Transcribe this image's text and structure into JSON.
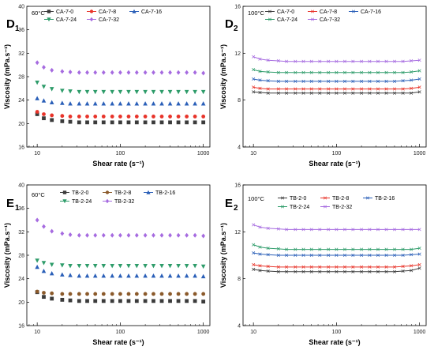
{
  "chart_data": [
    {
      "type": "scatter",
      "panel": "D",
      "panel_sub": "1",
      "temperature": "60°C",
      "xlabel": "Shear rate (s⁻¹)",
      "ylabel": "Viscosity (mPa.s⁻¹)",
      "x_scale": "log",
      "xlim": [
        7.5,
        1200
      ],
      "x_ticks": [
        10,
        100,
        1000
      ],
      "ylim": [
        16,
        40
      ],
      "y_ticks": [
        16,
        20,
        24,
        28,
        32,
        36,
        40
      ],
      "legend_position": "top",
      "grid": false,
      "x": [
        10,
        12,
        15,
        20,
        25,
        32,
        40,
        50,
        63,
        80,
        100,
        126,
        158,
        200,
        251,
        316,
        398,
        501,
        631,
        794,
        1000
      ],
      "series": [
        {
          "name": "CA-7-0",
          "marker": "square",
          "color": "#3b3b3b",
          "values": [
            21.6,
            20.9,
            20.6,
            20.4,
            20.3,
            20.2,
            20.2,
            20.2,
            20.2,
            20.2,
            20.2,
            20.2,
            20.2,
            20.2,
            20.2,
            20.2,
            20.2,
            20.2,
            20.2,
            20.2,
            20.2
          ]
        },
        {
          "name": "CA-7-8",
          "marker": "circle",
          "color": "#e8342a",
          "values": [
            22.0,
            21.6,
            21.4,
            21.3,
            21.2,
            21.2,
            21.2,
            21.2,
            21.2,
            21.2,
            21.2,
            21.2,
            21.2,
            21.2,
            21.2,
            21.2,
            21.2,
            21.2,
            21.2,
            21.2,
            21.2
          ]
        },
        {
          "name": "CA-7-16",
          "marker": "triangle-up",
          "color": "#2a5fb8",
          "values": [
            24.3,
            23.9,
            23.6,
            23.5,
            23.4,
            23.4,
            23.4,
            23.4,
            23.4,
            23.4,
            23.4,
            23.4,
            23.4,
            23.4,
            23.4,
            23.4,
            23.4,
            23.4,
            23.4,
            23.4,
            23.4
          ]
        },
        {
          "name": "CA-7-24",
          "marker": "triangle-down",
          "color": "#2e9c6a",
          "values": [
            27.0,
            26.3,
            25.9,
            25.6,
            25.5,
            25.4,
            25.4,
            25.4,
            25.4,
            25.4,
            25.4,
            25.4,
            25.4,
            25.4,
            25.4,
            25.4,
            25.4,
            25.4,
            25.4,
            25.4,
            25.4
          ]
        },
        {
          "name": "CA-7-32",
          "marker": "diamond",
          "color": "#a66be0",
          "values": [
            30.4,
            29.6,
            29.1,
            28.9,
            28.8,
            28.7,
            28.7,
            28.7,
            28.7,
            28.7,
            28.7,
            28.7,
            28.7,
            28.7,
            28.7,
            28.7,
            28.7,
            28.7,
            28.7,
            28.7,
            28.6
          ]
        }
      ]
    },
    {
      "type": "line",
      "panel": "D",
      "panel_sub": "2",
      "temperature": "100°C",
      "xlabel": "Shear rate (s⁻¹)",
      "ylabel": "Viscosity (mPa.s⁻¹)",
      "x_scale": "log",
      "xlim": [
        7.5,
        1200
      ],
      "x_ticks": [
        10,
        100,
        1000
      ],
      "ylim": [
        4,
        16
      ],
      "y_ticks": [
        4,
        8,
        12,
        16
      ],
      "legend_position": "top",
      "grid": false,
      "x": [
        10,
        12,
        15,
        20,
        25,
        32,
        40,
        50,
        63,
        80,
        100,
        126,
        158,
        200,
        251,
        316,
        398,
        501,
        631,
        794,
        1000
      ],
      "series": [
        {
          "name": "CA-7-0",
          "marker": "x",
          "color": "#3b3b3b",
          "values": [
            8.7,
            8.65,
            8.6,
            8.6,
            8.6,
            8.6,
            8.6,
            8.6,
            8.6,
            8.6,
            8.6,
            8.6,
            8.6,
            8.6,
            8.6,
            8.6,
            8.6,
            8.6,
            8.6,
            8.6,
            8.7
          ]
        },
        {
          "name": "CA-7-8",
          "marker": "x",
          "color": "#e8342a",
          "values": [
            9.1,
            9.0,
            8.95,
            8.95,
            8.95,
            8.95,
            8.95,
            8.95,
            8.95,
            8.95,
            8.95,
            8.95,
            8.95,
            8.95,
            8.95,
            8.95,
            8.95,
            8.95,
            8.95,
            9.0,
            9.1
          ]
        },
        {
          "name": "CA-7-16",
          "marker": "x",
          "color": "#2a5fb8",
          "values": [
            9.8,
            9.7,
            9.65,
            9.6,
            9.6,
            9.6,
            9.6,
            9.6,
            9.6,
            9.6,
            9.6,
            9.6,
            9.6,
            9.6,
            9.6,
            9.6,
            9.6,
            9.6,
            9.65,
            9.7,
            9.8
          ]
        },
        {
          "name": "CA-7-24",
          "marker": "x",
          "color": "#2e9c6a",
          "values": [
            10.6,
            10.45,
            10.4,
            10.35,
            10.35,
            10.35,
            10.35,
            10.35,
            10.35,
            10.35,
            10.35,
            10.35,
            10.35,
            10.35,
            10.35,
            10.35,
            10.35,
            10.35,
            10.35,
            10.4,
            10.5
          ]
        },
        {
          "name": "CA-7-32",
          "marker": "x",
          "color": "#a66be0",
          "values": [
            11.7,
            11.5,
            11.4,
            11.35,
            11.3,
            11.3,
            11.3,
            11.3,
            11.3,
            11.3,
            11.3,
            11.3,
            11.3,
            11.3,
            11.3,
            11.3,
            11.3,
            11.3,
            11.3,
            11.35,
            11.4
          ]
        }
      ]
    },
    {
      "type": "scatter",
      "panel": "E",
      "panel_sub": "1",
      "temperature": "60°C",
      "xlabel": "Shear rate (s⁻¹)",
      "ylabel": "Viscosity (mPa.s⁻¹)",
      "x_scale": "log",
      "xlim": [
        7.5,
        1200
      ],
      "x_ticks": [
        10,
        100,
        1000
      ],
      "ylim": [
        16,
        40
      ],
      "y_ticks": [
        16,
        20,
        24,
        28,
        32,
        36,
        40
      ],
      "legend_position": "top",
      "grid": false,
      "x": [
        10,
        12,
        15,
        20,
        25,
        32,
        40,
        50,
        63,
        80,
        100,
        126,
        158,
        200,
        251,
        316,
        398,
        501,
        631,
        794,
        1000
      ],
      "series": [
        {
          "name": "TB-2-0",
          "marker": "square",
          "color": "#3b3b3b",
          "values": [
            21.7,
            20.9,
            20.6,
            20.4,
            20.3,
            20.2,
            20.2,
            20.2,
            20.2,
            20.2,
            20.2,
            20.2,
            20.2,
            20.2,
            20.2,
            20.2,
            20.2,
            20.2,
            20.2,
            20.2,
            20.1
          ]
        },
        {
          "name": "TB-2-8",
          "marker": "circle",
          "color": "#8b5a2b",
          "values": [
            21.8,
            21.6,
            21.5,
            21.4,
            21.4,
            21.4,
            21.4,
            21.4,
            21.4,
            21.4,
            21.4,
            21.4,
            21.4,
            21.4,
            21.4,
            21.4,
            21.4,
            21.4,
            21.4,
            21.4,
            21.4
          ]
        },
        {
          "name": "TB-2-16",
          "marker": "triangle-up",
          "color": "#2a5fb8",
          "values": [
            26.0,
            25.3,
            24.9,
            24.7,
            24.6,
            24.5,
            24.5,
            24.5,
            24.5,
            24.5,
            24.5,
            24.5,
            24.5,
            24.5,
            24.5,
            24.5,
            24.5,
            24.5,
            24.5,
            24.5,
            24.4
          ]
        },
        {
          "name": "TB-2-24",
          "marker": "triangle-down",
          "color": "#2e9c6a",
          "values": [
            27.1,
            26.7,
            26.4,
            26.3,
            26.2,
            26.2,
            26.2,
            26.2,
            26.2,
            26.2,
            26.2,
            26.2,
            26.2,
            26.2,
            26.2,
            26.2,
            26.2,
            26.2,
            26.2,
            26.2,
            26.1
          ]
        },
        {
          "name": "TB-2-32",
          "marker": "diamond",
          "color": "#a66be0",
          "values": [
            34.0,
            32.9,
            32.1,
            31.7,
            31.5,
            31.4,
            31.4,
            31.4,
            31.4,
            31.4,
            31.4,
            31.4,
            31.4,
            31.4,
            31.4,
            31.4,
            31.4,
            31.4,
            31.4,
            31.4,
            31.3
          ]
        }
      ]
    },
    {
      "type": "line",
      "panel": "E",
      "panel_sub": "2",
      "temperature": "100°C",
      "xlabel": "Shear rate (s⁻¹)",
      "ylabel": "Viscosity (mPa.s⁻¹)",
      "x_scale": "log",
      "xlim": [
        7.5,
        1200
      ],
      "x_ticks": [
        10,
        100,
        1000
      ],
      "ylim": [
        4,
        16
      ],
      "y_ticks": [
        4,
        8,
        12,
        16
      ],
      "legend_position": "top",
      "grid": false,
      "x": [
        10,
        12,
        15,
        20,
        25,
        32,
        40,
        50,
        63,
        80,
        100,
        126,
        158,
        200,
        251,
        316,
        398,
        501,
        631,
        794,
        1000
      ],
      "series": [
        {
          "name": "TB-2-0",
          "marker": "x",
          "color": "#3b3b3b",
          "values": [
            8.8,
            8.7,
            8.65,
            8.6,
            8.6,
            8.6,
            8.6,
            8.6,
            8.6,
            8.6,
            8.6,
            8.6,
            8.6,
            8.6,
            8.6,
            8.6,
            8.6,
            8.6,
            8.65,
            8.7,
            8.9
          ]
        },
        {
          "name": "TB-2-8",
          "marker": "x",
          "color": "#e8342a",
          "values": [
            9.2,
            9.1,
            9.05,
            9.0,
            9.0,
            9.0,
            9.0,
            9.0,
            9.0,
            9.0,
            9.0,
            9.0,
            9.0,
            9.0,
            9.0,
            9.0,
            9.0,
            9.0,
            9.05,
            9.1,
            9.2
          ]
        },
        {
          "name": "TB-2-16",
          "marker": "x",
          "color": "#2a5fb8",
          "values": [
            10.2,
            10.1,
            10.05,
            10.0,
            10.0,
            10.0,
            10.0,
            10.0,
            10.0,
            10.0,
            10.0,
            10.0,
            10.0,
            10.0,
            10.0,
            10.0,
            10.0,
            10.0,
            10.0,
            10.05,
            10.1
          ]
        },
        {
          "name": "TB-2-24",
          "marker": "x",
          "color": "#2e9c6a",
          "values": [
            10.9,
            10.7,
            10.6,
            10.55,
            10.5,
            10.5,
            10.5,
            10.5,
            10.5,
            10.5,
            10.5,
            10.5,
            10.5,
            10.5,
            10.5,
            10.5,
            10.5,
            10.5,
            10.5,
            10.5,
            10.6
          ]
        },
        {
          "name": "TB-2-32",
          "marker": "x",
          "color": "#a66be0",
          "values": [
            12.6,
            12.4,
            12.3,
            12.25,
            12.2,
            12.2,
            12.2,
            12.2,
            12.2,
            12.2,
            12.2,
            12.2,
            12.2,
            12.2,
            12.2,
            12.2,
            12.2,
            12.2,
            12.2,
            12.2,
            12.2
          ]
        }
      ]
    }
  ]
}
